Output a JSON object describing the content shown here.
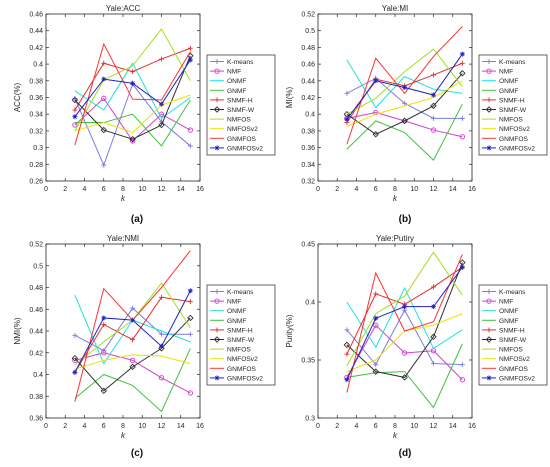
{
  "figure": {
    "panel_labels": [
      "(a)",
      "(b)",
      "(c)",
      "(d)"
    ]
  },
  "legend_entries": [
    "K-means",
    "NMF",
    "ONMF",
    "GNMF",
    "SNMF-H",
    "SNMF-W",
    "NMFOS",
    "NMFOSv2",
    "GNMFOS",
    "GNMFOSv2"
  ],
  "series_colors": [
    "#7d7de0",
    "#d040d0",
    "#20e0e0",
    "#40c040",
    "#e03030",
    "#303030",
    "#a0e020",
    "#f0e000",
    "#ff3030",
    "#2020c0"
  ],
  "series_markers": [
    "plus",
    "circle",
    "none",
    "none",
    "plus",
    "diamond",
    "none",
    "none",
    "none",
    "star"
  ],
  "chart_data": [
    {
      "type": "line",
      "title": "Yale:ACC",
      "xlabel": "k",
      "ylabel": "ACC(%)",
      "x": [
        3,
        6,
        9,
        12,
        15
      ],
      "xlim": [
        0,
        16
      ],
      "ylim": [
        0.26,
        0.46
      ],
      "xticks": [
        0,
        2,
        4,
        6,
        8,
        10,
        12,
        14,
        16
      ],
      "yticks": [
        0.26,
        0.28,
        0.3,
        0.32,
        0.34,
        0.36,
        0.38,
        0.4,
        0.42,
        0.44,
        0.46
      ],
      "ytick_labels": [
        "0.26",
        "0.28",
        "0.3",
        "0.32",
        "0.34",
        "0.36",
        "0.38",
        "0.4",
        "0.42",
        "0.44",
        "0.46"
      ],
      "legend": "right",
      "series": [
        {
          "name": "K-means",
          "values": [
            0.359,
            0.279,
            0.376,
            0.331,
            0.302
          ]
        },
        {
          "name": "NMF",
          "values": [
            0.327,
            0.359,
            0.308,
            0.34,
            0.321
          ]
        },
        {
          "name": "ONMF",
          "values": [
            0.368,
            0.345,
            0.401,
            0.335,
            0.36
          ]
        },
        {
          "name": "GNMF",
          "values": [
            0.33,
            0.33,
            0.34,
            0.302,
            0.357
          ]
        },
        {
          "name": "SNMF-H",
          "values": [
            0.345,
            0.401,
            0.391,
            0.406,
            0.419
          ]
        },
        {
          "name": "SNMF-W",
          "values": [
            0.357,
            0.321,
            0.31,
            0.327,
            0.41
          ]
        },
        {
          "name": "NMFOS",
          "values": [
            0.32,
            0.381,
            0.398,
            0.442,
            0.38
          ]
        },
        {
          "name": "NMFOSv2",
          "values": [
            0.32,
            0.33,
            0.318,
            0.351,
            0.363
          ]
        },
        {
          "name": "GNMFOS",
          "values": [
            0.303,
            0.424,
            0.358,
            0.357,
            0.415
          ]
        },
        {
          "name": "GNMFOSv2",
          "values": [
            0.337,
            0.382,
            0.377,
            0.352,
            0.405
          ]
        }
      ]
    },
    {
      "type": "line",
      "title": "Yale:MI",
      "xlabel": "k",
      "ylabel": "MI(%)",
      "x": [
        3,
        6,
        9,
        12,
        15
      ],
      "xlim": [
        0,
        16
      ],
      "ylim": [
        0.32,
        0.52
      ],
      "xticks": [
        0,
        2,
        4,
        6,
        8,
        10,
        12,
        14,
        16
      ],
      "yticks": [
        0.32,
        0.34,
        0.36,
        0.38,
        0.4,
        0.42,
        0.44,
        0.46,
        0.48,
        0.5,
        0.52
      ],
      "ytick_labels": [
        "0.32",
        "0.34",
        "0.36",
        "0.38",
        "0.4",
        "0.42",
        "0.44",
        "0.46",
        "0.48",
        "0.5",
        "0.52"
      ],
      "legend": "right",
      "series": [
        {
          "name": "K-means",
          "values": [
            0.425,
            0.443,
            0.413,
            0.395,
            0.395
          ]
        },
        {
          "name": "NMF",
          "values": [
            0.395,
            0.402,
            0.392,
            0.381,
            0.373
          ]
        },
        {
          "name": "ONMF",
          "values": [
            0.465,
            0.408,
            0.445,
            0.43,
            0.425
          ]
        },
        {
          "name": "GNMF",
          "values": [
            0.358,
            0.392,
            0.378,
            0.345,
            0.412
          ]
        },
        {
          "name": "SNMF-H",
          "values": [
            0.39,
            0.442,
            0.434,
            0.447,
            0.461
          ]
        },
        {
          "name": "SNMF-W",
          "values": [
            0.4,
            0.376,
            0.392,
            0.41,
            0.449
          ]
        },
        {
          "name": "NMFOS",
          "values": [
            0.4,
            0.419,
            0.451,
            0.478,
            0.433
          ]
        },
        {
          "name": "NMFOSv2",
          "values": [
            0.385,
            0.4,
            0.41,
            0.42,
            0.44
          ]
        },
        {
          "name": "GNMFOS",
          "values": [
            0.364,
            0.467,
            0.425,
            0.469,
            0.505
          ]
        },
        {
          "name": "GNMFOSv2",
          "values": [
            0.394,
            0.44,
            0.432,
            0.423,
            0.472
          ]
        }
      ]
    },
    {
      "type": "line",
      "title": "Yale:NMI",
      "xlabel": "k",
      "ylabel": "NMI(%)",
      "x": [
        3,
        6,
        9,
        12,
        15
      ],
      "xlim": [
        0,
        16
      ],
      "ylim": [
        0.36,
        0.52
      ],
      "xticks": [
        0,
        2,
        4,
        6,
        8,
        10,
        12,
        14,
        16
      ],
      "yticks": [
        0.36,
        0.38,
        0.4,
        0.42,
        0.44,
        0.46,
        0.48,
        0.5,
        0.52
      ],
      "ytick_labels": [
        "0.36",
        "0.38",
        "0.4",
        "0.42",
        "0.44",
        "0.46",
        "0.48",
        "0.5",
        "0.52"
      ],
      "legend": "right",
      "series": [
        {
          "name": "K-means",
          "values": [
            0.436,
            0.422,
            0.461,
            0.437,
            0.437
          ]
        },
        {
          "name": "NMF",
          "values": [
            0.413,
            0.42,
            0.413,
            0.397,
            0.383
          ]
        },
        {
          "name": "ONMF",
          "values": [
            0.473,
            0.41,
            0.45,
            0.44,
            0.43
          ]
        },
        {
          "name": "GNMF",
          "values": [
            0.378,
            0.4,
            0.39,
            0.366,
            0.424
          ]
        },
        {
          "name": "SNMF-H",
          "values": [
            0.402,
            0.446,
            0.432,
            0.471,
            0.467
          ]
        },
        {
          "name": "SNMF-W",
          "values": [
            0.415,
            0.385,
            0.407,
            0.424,
            0.452
          ]
        },
        {
          "name": "NMFOS",
          "values": [
            0.409,
            0.43,
            0.45,
            0.484,
            0.443
          ]
        },
        {
          "name": "NMFOSv2",
          "values": [
            0.405,
            0.413,
            0.418,
            0.417,
            0.41
          ]
        },
        {
          "name": "GNMFOS",
          "values": [
            0.375,
            0.479,
            0.45,
            0.48,
            0.514
          ]
        },
        {
          "name": "GNMFOSv2",
          "values": [
            0.402,
            0.452,
            0.45,
            0.426,
            0.477
          ]
        }
      ]
    },
    {
      "type": "line",
      "title": "Yale:Putiry",
      "xlabel": "k",
      "ylabel": "Purity(%)",
      "x": [
        3,
        6,
        9,
        12,
        15
      ],
      "xlim": [
        0,
        16
      ],
      "ylim": [
        0.3,
        0.45
      ],
      "xticks": [
        0,
        2,
        4,
        6,
        8,
        10,
        12,
        14,
        16
      ],
      "yticks": [
        0.3,
        0.35,
        0.4,
        0.45
      ],
      "ytick_labels": [
        "0.3",
        "0.35",
        "0.4",
        "0.45"
      ],
      "legend": "right",
      "series": [
        {
          "name": "K-means",
          "values": [
            0.376,
            0.346,
            0.393,
            0.347,
            0.346
          ]
        },
        {
          "name": "NMF",
          "values": [
            0.335,
            0.38,
            0.356,
            0.358,
            0.333
          ]
        },
        {
          "name": "ONMF",
          "values": [
            0.4,
            0.361,
            0.412,
            0.36,
            0.376
          ]
        },
        {
          "name": "GNMF",
          "values": [
            0.335,
            0.339,
            0.34,
            0.309,
            0.364
          ]
        },
        {
          "name": "SNMF-H",
          "values": [
            0.355,
            0.407,
            0.398,
            0.413,
            0.43
          ]
        },
        {
          "name": "SNMF-W",
          "values": [
            0.363,
            0.34,
            0.335,
            0.37,
            0.434
          ]
        },
        {
          "name": "NMFOS",
          "values": [
            0.345,
            0.39,
            0.405,
            0.443,
            0.406
          ]
        },
        {
          "name": "NMFOSv2",
          "values": [
            0.34,
            0.35,
            0.375,
            0.38,
            0.39
          ]
        },
        {
          "name": "GNMFOS",
          "values": [
            0.322,
            0.425,
            0.375,
            0.383,
            0.441
          ]
        },
        {
          "name": "GNMFOSv2",
          "values": [
            0.333,
            0.386,
            0.396,
            0.396,
            0.43
          ]
        }
      ]
    }
  ]
}
